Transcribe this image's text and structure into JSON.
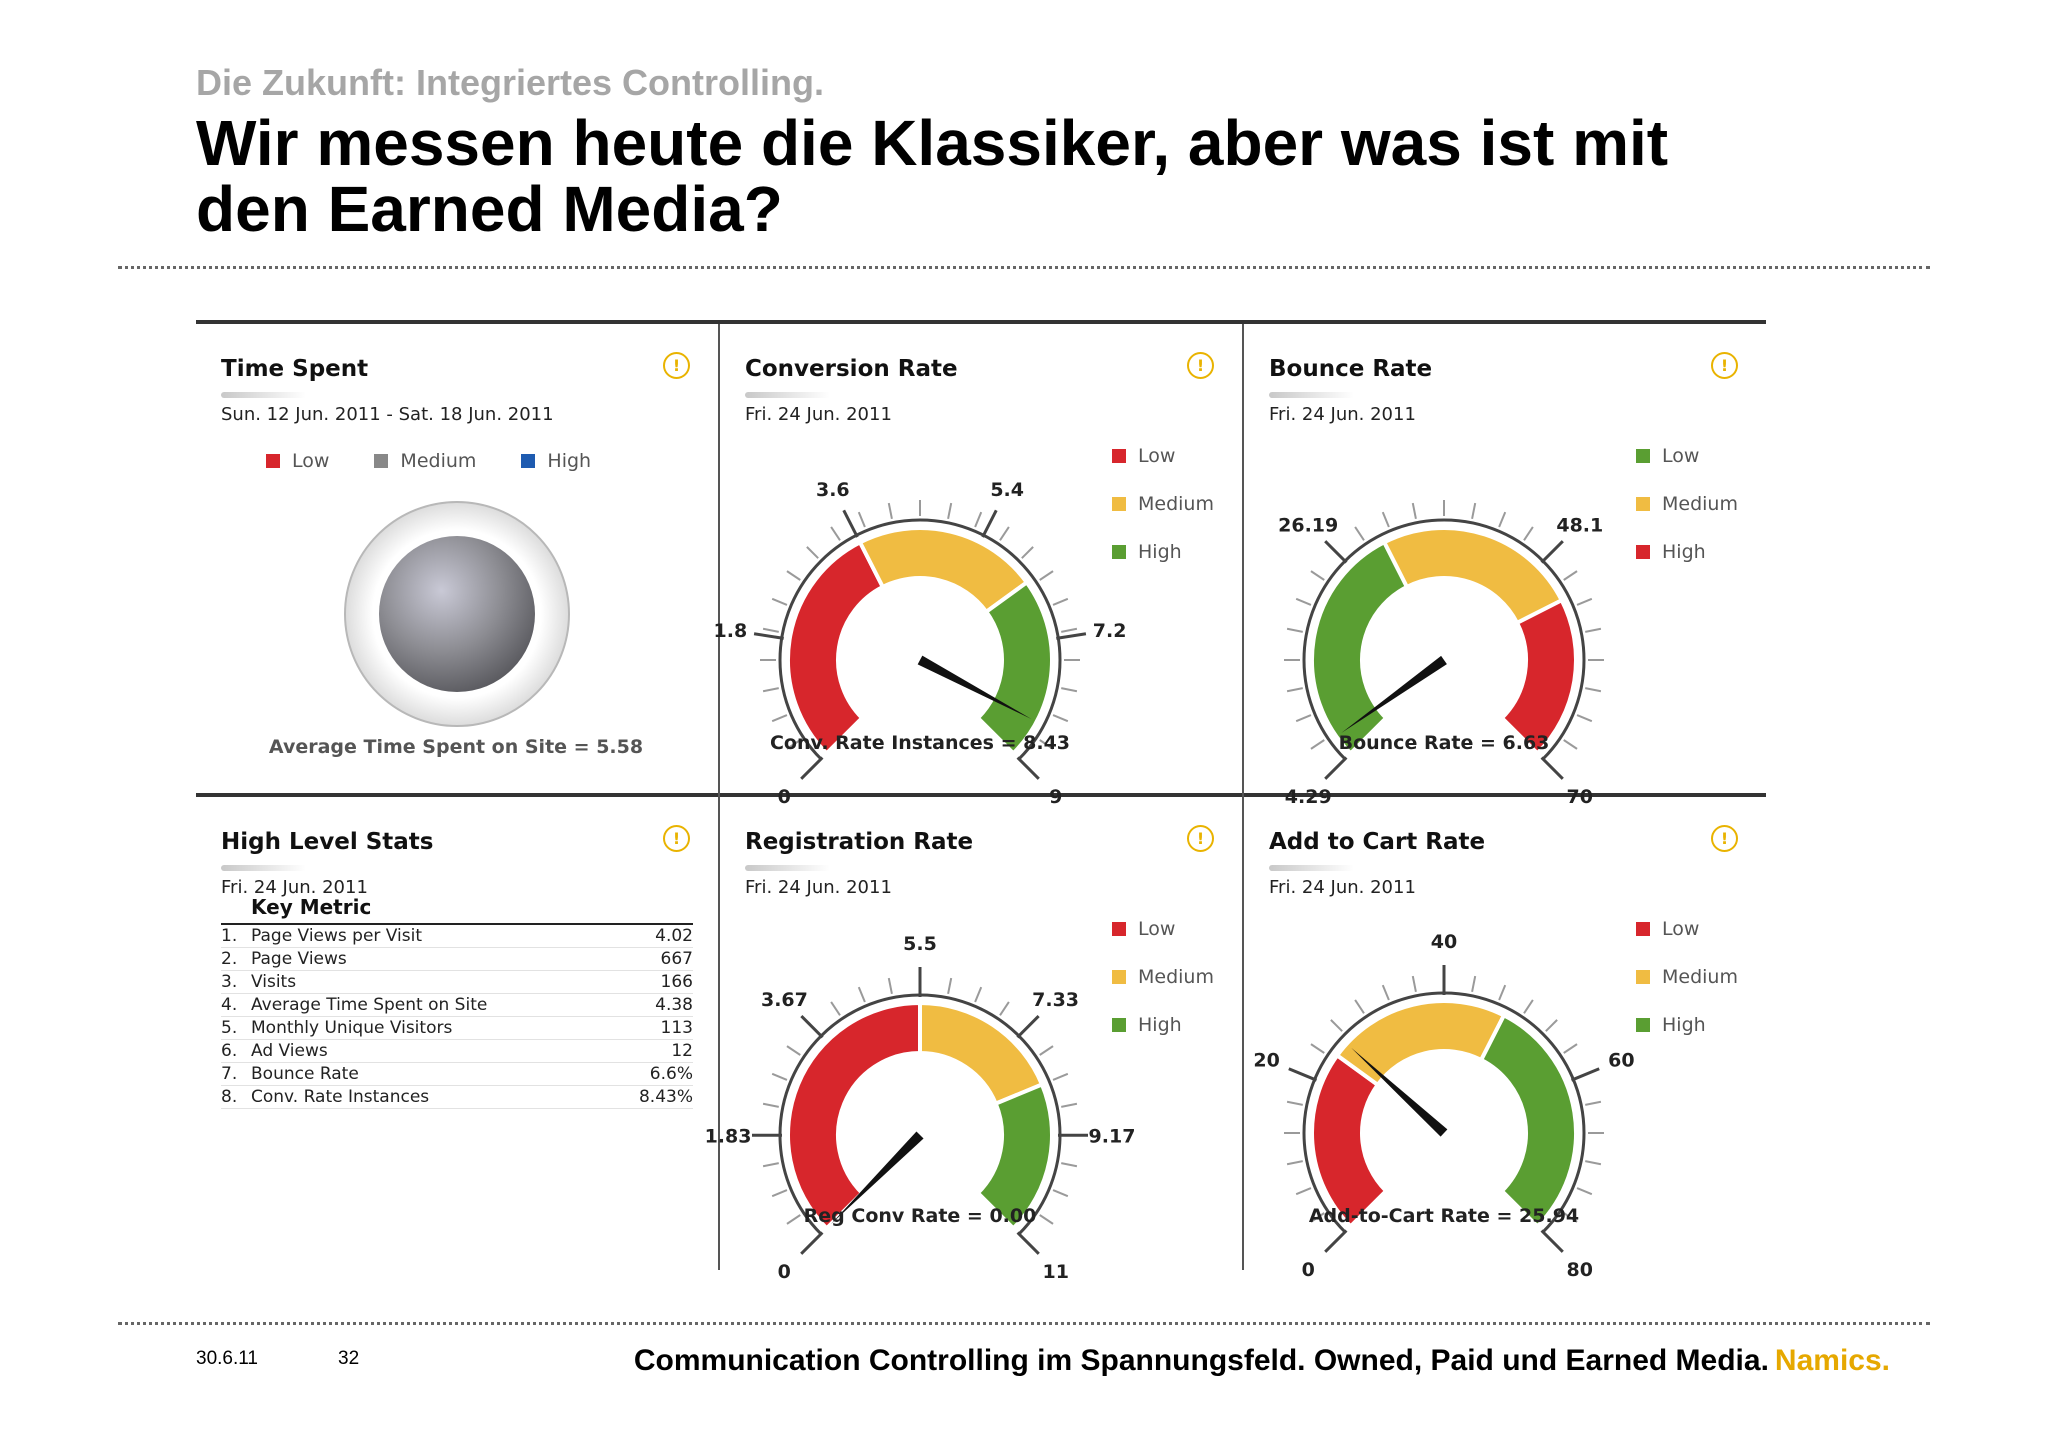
{
  "slide": {
    "kicker": "Die Zukunft: Integriertes Controlling.",
    "title": "Wir messen heute die Klassiker, aber was ist mit den Earned Media?",
    "footer": {
      "date": "30.6.11",
      "page": "32",
      "text": "Communication Controlling im Spannungsfeld. Owned, Paid und Earned Media.",
      "brand": "Namics."
    }
  },
  "colors": {
    "red": "#d7262c",
    "yellow": "#f0bc42",
    "green": "#5a9e32",
    "gray": "#888888",
    "blue": "#1e5bb0",
    "warning": "#e9b300",
    "brand": "#e6a800"
  },
  "chart_data": [
    {
      "type": "gauge",
      "id": "time-spent",
      "title": "Time Spent",
      "date": "Sun. 12 Jun. 2011 - Sat. 18 Jun. 2011",
      "legend": [
        "Low",
        "Medium",
        "High"
      ],
      "legend_colors": [
        "red",
        "gray",
        "blue"
      ],
      "indicator": "Medium",
      "caption": "Average Time Spent on Site = 5.58",
      "value": 5.58
    },
    {
      "type": "gauge",
      "id": "conversion-rate",
      "title": "Conversion Rate",
      "date": "Fri. 24 Jun. 2011",
      "min": 0,
      "max": 9,
      "ticks": [
        "0",
        "1.8",
        "3.6",
        "5.4",
        "7.2",
        "9"
      ],
      "bands": [
        {
          "from": 0,
          "to": 3.6,
          "color": "red"
        },
        {
          "from": 3.6,
          "to": 6.3,
          "color": "yellow"
        },
        {
          "from": 6.3,
          "to": 9,
          "color": "green"
        }
      ],
      "legend": [
        "Low",
        "Medium",
        "High"
      ],
      "legend_colors": [
        "red",
        "yellow",
        "green"
      ],
      "value": 8.43,
      "caption": "Conv. Rate Instances = 8.43"
    },
    {
      "type": "gauge",
      "id": "bounce-rate",
      "title": "Bounce Rate",
      "date": "Fri. 24 Jun. 2011",
      "min": 4.29,
      "max": 70,
      "ticks": [
        "4.29",
        "26.19",
        "48.1",
        "70"
      ],
      "bands": [
        {
          "from": 4.29,
          "to": 30.6,
          "color": "green"
        },
        {
          "from": 30.6,
          "to": 52.5,
          "color": "yellow"
        },
        {
          "from": 52.5,
          "to": 70,
          "color": "red"
        }
      ],
      "legend": [
        "Low",
        "Medium",
        "High"
      ],
      "legend_colors": [
        "green",
        "yellow",
        "red"
      ],
      "value": 6.63,
      "caption": "Bounce Rate = 6.63"
    },
    {
      "type": "table",
      "id": "high-level-stats",
      "title": "High Level Stats",
      "date": "Fri. 24 Jun. 2011",
      "header": "Key Metric",
      "rows": [
        {
          "n": "1.",
          "label": "Page Views per Visit",
          "value": "4.02"
        },
        {
          "n": "2.",
          "label": "Page Views",
          "value": "667"
        },
        {
          "n": "3.",
          "label": "Visits",
          "value": "166"
        },
        {
          "n": "4.",
          "label": "Average Time Spent on Site",
          "value": "4.38"
        },
        {
          "n": "5.",
          "label": "Monthly Unique Visitors",
          "value": "113"
        },
        {
          "n": "6.",
          "label": "Ad Views",
          "value": "12"
        },
        {
          "n": "7.",
          "label": "Bounce Rate",
          "value": "6.6%"
        },
        {
          "n": "8.",
          "label": "Conv. Rate Instances",
          "value": "8.43%"
        }
      ]
    },
    {
      "type": "gauge",
      "id": "registration-rate",
      "title": "Registration Rate",
      "date": "Fri. 24 Jun. 2011",
      "min": 0,
      "max": 11,
      "ticks": [
        "0",
        "1.83",
        "3.67",
        "5.5",
        "7.33",
        "9.17",
        "11"
      ],
      "bands": [
        {
          "from": 0,
          "to": 5.5,
          "color": "red"
        },
        {
          "from": 5.5,
          "to": 8.25,
          "color": "yellow"
        },
        {
          "from": 8.25,
          "to": 11,
          "color": "green"
        }
      ],
      "legend": [
        "Low",
        "Medium",
        "High"
      ],
      "legend_colors": [
        "red",
        "yellow",
        "green"
      ],
      "value": 0.0,
      "caption": "Reg Conv Rate = 0.00"
    },
    {
      "type": "gauge",
      "id": "add-to-cart-rate",
      "title": "Add to Cart Rate",
      "date": "Fri. 24 Jun. 2011",
      "min": 0,
      "max": 80,
      "ticks": [
        "0",
        "20",
        "40",
        "60",
        "80"
      ],
      "bands": [
        {
          "from": 0,
          "to": 24,
          "color": "red"
        },
        {
          "from": 24,
          "to": 48,
          "color": "yellow"
        },
        {
          "from": 48,
          "to": 80,
          "color": "green"
        }
      ],
      "legend": [
        "Low",
        "Medium",
        "High"
      ],
      "legend_colors": [
        "red",
        "yellow",
        "green"
      ],
      "value": 25.94,
      "caption": "Add-to-Cart Rate = 25.94"
    }
  ]
}
